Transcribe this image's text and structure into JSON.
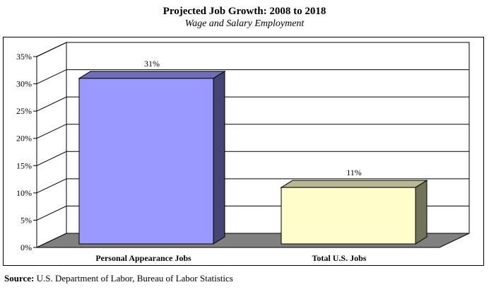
{
  "chart_data": {
    "type": "bar",
    "title": "Projected Job Growth: 2008 to 2018",
    "subtitle": "Wage and Salary Employment",
    "categories": [
      "Personal Appearance Jobs",
      "Total U.S. Jobs"
    ],
    "values": [
      31,
      11
    ],
    "data_labels": [
      "31%",
      "11%"
    ],
    "ylim": [
      0,
      35
    ],
    "yticks": [
      "0%",
      "5%",
      "10%",
      "15%",
      "20%",
      "25%",
      "30%",
      "35%"
    ],
    "grid": true,
    "bar_colors": [
      "#9999ff",
      "#ffffcc"
    ],
    "xlabel": "",
    "ylabel": ""
  },
  "source": {
    "label": "Source:",
    "text": " U.S. Department of Labor, Bureau of Labor Statistics"
  }
}
